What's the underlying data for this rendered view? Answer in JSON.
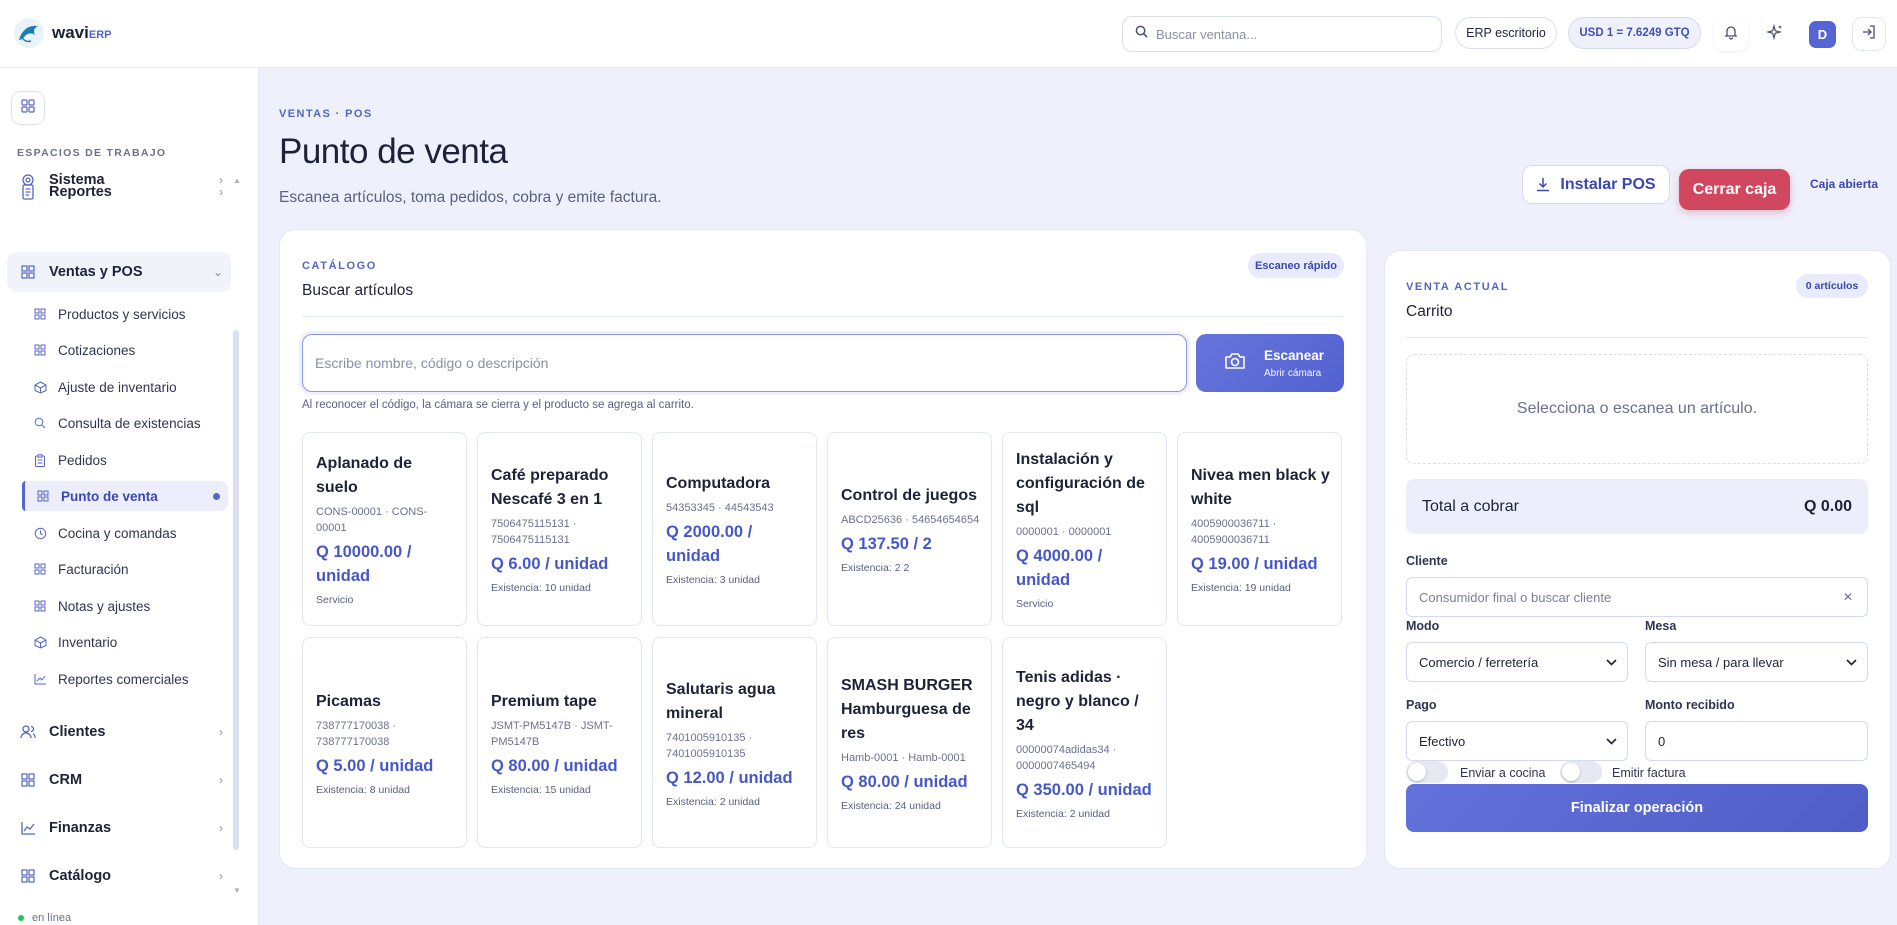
{
  "app": {
    "brand": "wavi",
    "brand_suffix": "ERP"
  },
  "topbar": {
    "search_placeholder": "Buscar ventana...",
    "mode_label": "ERP escritorio",
    "exchange_rate": "USD 1 = 7.6249 GTQ",
    "avatar_initial": "D"
  },
  "sidebar": {
    "heading": "ESPACIOS DE TRABAJO",
    "sistema": "Sistema",
    "reportes": "Reportes",
    "ventas": "Ventas y POS",
    "sub": [
      "Productos y servicios",
      "Cotizaciones",
      "Ajuste de inventario",
      "Consulta de existencias",
      "Pedidos",
      "Punto de venta",
      "Cocina y comandas",
      "Facturación",
      "Notas y ajustes",
      "Inventario",
      "Reportes comerciales"
    ],
    "clientes": "Clientes",
    "crm": "CRM",
    "finanzas": "Finanzas",
    "catalogo": "Catálogo",
    "status": "en línea"
  },
  "header": {
    "breadcrumb": "VENTAS · POS",
    "title": "Punto de venta",
    "subtitle": "Escanea artículos, toma pedidos, cobra y emite factura.",
    "install_label": "Instalar POS",
    "close_label": "Cerrar caja",
    "status_label": "Caja abierta"
  },
  "catalog": {
    "kicker": "CATÁLOGO",
    "title": "Buscar artículos",
    "badge": "Escaneo rápido",
    "search_placeholder": "Escribe nombre, código o descripción",
    "scan_label": "Escanear",
    "scan_sub": "Abrir cámara",
    "hint": "Al reconocer el código, la cámara se cierra y el producto se agrega al carrito.",
    "products": [
      {
        "name": "Aplanado de suelo",
        "code": "CONS-00001 · CONS-00001",
        "price": "Q 10000.00 / unidad",
        "meta": "Servicio"
      },
      {
        "name": "Café preparado Nescafé 3 en 1",
        "code": "7506475115131 · 7506475115131",
        "price": "Q 6.00 / unidad",
        "meta": "Existencia: 10 unidad"
      },
      {
        "name": "Computadora",
        "code": "54353345 · 44543543",
        "price": "Q 2000.00 / unidad",
        "meta": "Existencia: 3 unidad"
      },
      {
        "name": "Control de juegos",
        "code": "ABCD25636 · 54654654654",
        "price": "Q 137.50 / 2",
        "meta": "Existencia: 2 2"
      },
      {
        "name": "Instalación y configuración de sql",
        "code": "0000001 · 0000001",
        "price": "Q 4000.00 / unidad",
        "meta": "Servicio"
      },
      {
        "name": "Nivea men black y white",
        "code": "4005900036711 · 4005900036711",
        "price": "Q 19.00 / unidad",
        "meta": "Existencia: 19 unidad"
      },
      {
        "name": "Picamas",
        "code": "738777170038 · 738777170038",
        "price": "Q 5.00 / unidad",
        "meta": "Existencia: 8 unidad"
      },
      {
        "name": "Premium tape",
        "code": "JSMT-PM5147B · JSMT-PM5147B",
        "price": "Q 80.00 / unidad",
        "meta": "Existencia: 15 unidad"
      },
      {
        "name": "Salutaris agua mineral",
        "code": "7401005910135 · 7401005910135",
        "price": "Q 12.00 / unidad",
        "meta": "Existencia: 2 unidad"
      },
      {
        "name": "SMASH BURGER Hamburguesa de res",
        "code": "Hamb-0001 · Hamb-0001",
        "price": "Q 80.00 / unidad",
        "meta": "Existencia: 24 unidad"
      },
      {
        "name": "Tenis adidas · negro y blanco / 34",
        "code": "00000074adidas34 · 0000007465494",
        "price": "Q 350.00 / unidad",
        "meta": "Existencia: 2 unidad"
      }
    ]
  },
  "cart": {
    "kicker": "VENTA ACTUAL",
    "title": "Carrito",
    "badge": "0 artículos",
    "empty": "Selecciona o escanea un artículo.",
    "total_label": "Total a cobrar",
    "total_value": "Q 0.00",
    "cliente_label": "Cliente",
    "cliente_placeholder": "Consumidor final o buscar cliente",
    "modo_label": "Modo",
    "modo_value": "Comercio / ferretería",
    "mesa_label": "Mesa",
    "mesa_value": "Sin mesa / para llevar",
    "pago_label": "Pago",
    "pago_value": "Efectivo",
    "monto_label": "Monto recibido",
    "monto_value": "0",
    "toggle_cocina": "Enviar a cocina",
    "toggle_factura": "Emitir factura",
    "finalize_label": "Finalizar operación"
  }
}
